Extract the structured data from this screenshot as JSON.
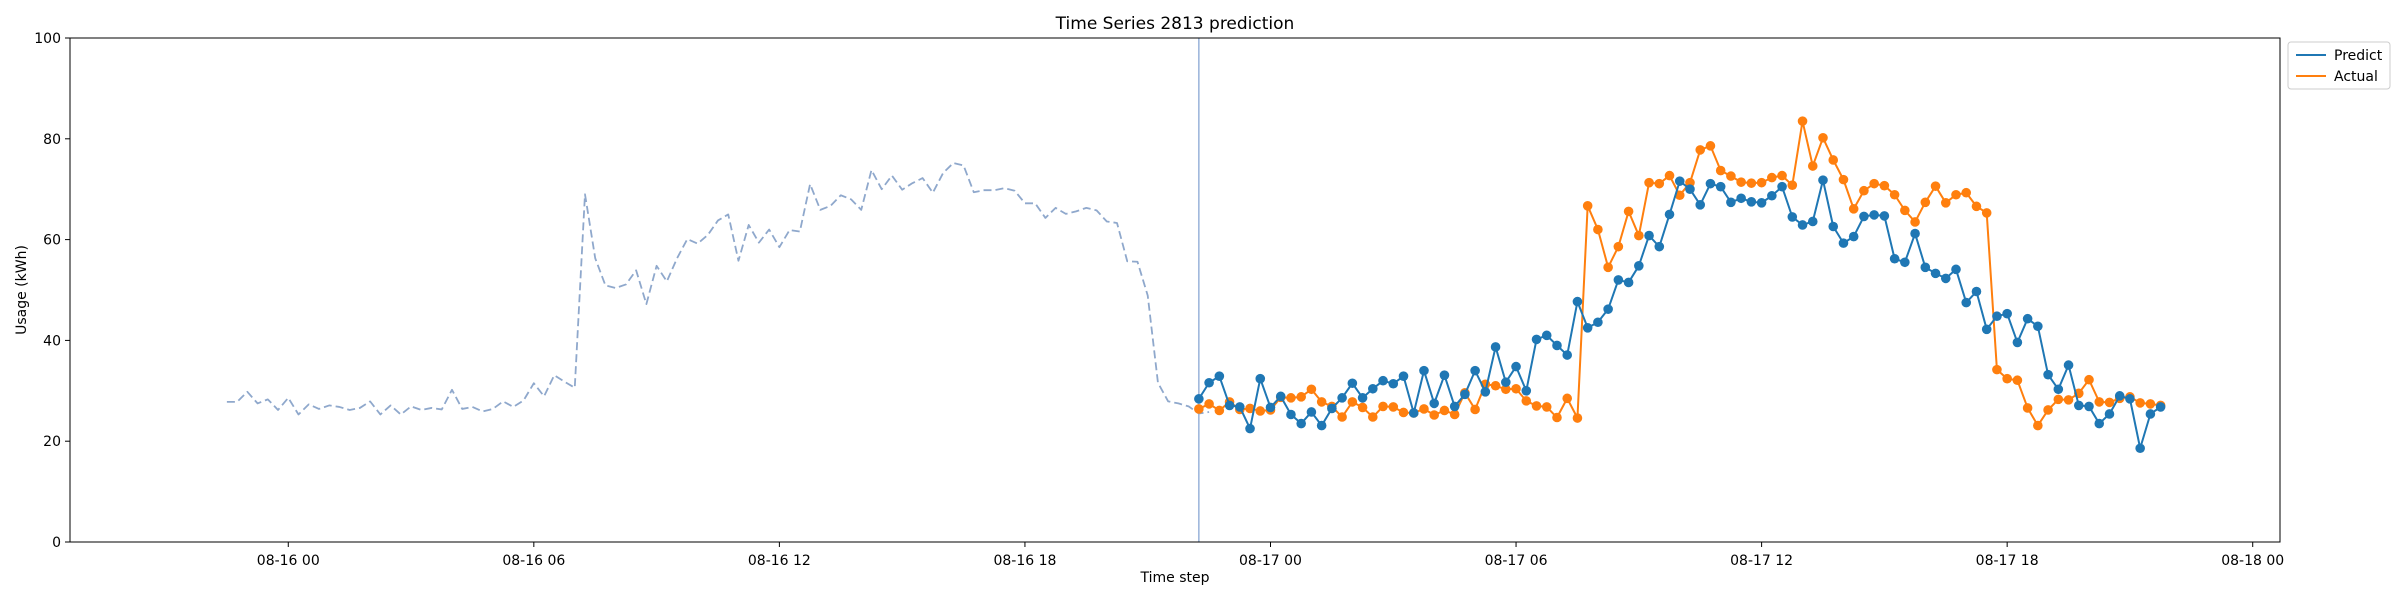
{
  "chart_data": {
    "type": "line",
    "title": "Time Series 2813 prediction",
    "xlabel": "Time step",
    "ylabel": "Usage (kWh)",
    "ylim": [
      0,
      100
    ],
    "yticks": [
      0,
      20,
      40,
      60,
      80,
      100
    ],
    "xlim": [
      "2018-08-15 18:40",
      "2018-08-18 00:40"
    ],
    "xticks": [
      {
        "t": "2018-08-16 00:00",
        "label": "08-16 00"
      },
      {
        "t": "2018-08-16 06:00",
        "label": "08-16 06"
      },
      {
        "t": "2018-08-16 12:00",
        "label": "08-16 12"
      },
      {
        "t": "2018-08-16 18:00",
        "label": "08-16 18"
      },
      {
        "t": "2018-08-17 00:00",
        "label": "08-17 00"
      },
      {
        "t": "2018-08-17 06:00",
        "label": "08-17 06"
      },
      {
        "t": "2018-08-17 12:00",
        "label": "08-17 12"
      },
      {
        "t": "2018-08-17 18:00",
        "label": "08-17 18"
      },
      {
        "t": "2018-08-18 00:00",
        "label": "08-18 00"
      }
    ],
    "grid": false,
    "legend_position": "upper-right-outside",
    "forecast_start": "2018-08-16 22:15",
    "series": [
      {
        "name": "",
        "style": "dashed",
        "color": "#8fa8cc",
        "markers": false,
        "x_start": "2018-08-15 22:30",
        "x_step_minutes": 15,
        "values": [
          27.8,
          27.8,
          29.8,
          27.5,
          28.3,
          26.2,
          28.6,
          25.3,
          27.3,
          26.4,
          27.1,
          26.8,
          26.2,
          26.6,
          27.9,
          25.3,
          27.1,
          25.3,
          26.9,
          26.2,
          26.6,
          26.3,
          30.2,
          26.4,
          26.8,
          25.9,
          26.4,
          27.9,
          26.8,
          28.1,
          31.5,
          28.9,
          33.1,
          31.8,
          30.6,
          69.0,
          56.3,
          50.9,
          50.4,
          51.1,
          53.9,
          47.2,
          54.8,
          51.7,
          56.3,
          60.1,
          59.2,
          60.9,
          63.8,
          65.0,
          55.8,
          62.9,
          59.4,
          62.0,
          58.5,
          61.9,
          61.6,
          71.0,
          65.9,
          66.7,
          68.8,
          68.0,
          65.9,
          73.8,
          70.0,
          72.7,
          69.9,
          71.2,
          72.2,
          69.3,
          73.2,
          75.2,
          74.7,
          69.4,
          69.8,
          69.8,
          70.2,
          69.7,
          67.2,
          67.2,
          64.3,
          66.3,
          65.1,
          65.6,
          66.3,
          65.8,
          63.6,
          63.3,
          55.7,
          55.6,
          48.9,
          31.6,
          27.9,
          27.5,
          26.9,
          25.5,
          25.8
        ]
      },
      {
        "name": "Predict",
        "style": "solid",
        "color": "#1f77b4",
        "markers": true,
        "x_start": "2018-08-16 22:15",
        "x_step_minutes": 15,
        "values": [
          28.4,
          31.6,
          32.9,
          27.1,
          26.8,
          22.5,
          32.4,
          26.7,
          28.9,
          25.3,
          23.5,
          25.8,
          23.1,
          26.5,
          28.6,
          31.5,
          28.6,
          30.4,
          32.0,
          31.4,
          32.9,
          25.6,
          34.0,
          27.5,
          33.1,
          26.9,
          29.3,
          34.0,
          29.8,
          38.7,
          31.7,
          34.8,
          30.0,
          40.2,
          41.0,
          39.0,
          37.1,
          47.7,
          42.5,
          43.6,
          46.2,
          52.0,
          51.5,
          54.8,
          60.8,
          58.6,
          65.0,
          71.6,
          70.0,
          66.9,
          71.1,
          70.5,
          67.4,
          68.2,
          67.5,
          67.3,
          68.7,
          70.5,
          64.5,
          62.9,
          63.6,
          71.8,
          62.6,
          59.3,
          60.6,
          64.6,
          64.9,
          64.7,
          56.2,
          55.5,
          61.2,
          54.5,
          53.3,
          52.3,
          54.1,
          47.5,
          49.7,
          42.2,
          44.8,
          45.3,
          39.6,
          44.3,
          42.8,
          33.2,
          30.3,
          35.1,
          27.1,
          26.9,
          23.5,
          25.4,
          29.0,
          28.4,
          18.6,
          25.4,
          26.8
        ]
      },
      {
        "name": "Actual",
        "style": "solid",
        "color": "#ff7f0e",
        "markers": true,
        "x_start": "2018-08-16 22:15",
        "x_step_minutes": 15,
        "values": [
          26.4,
          27.4,
          26.1,
          27.8,
          26.3,
          26.5,
          26.0,
          26.2,
          28.7,
          28.6,
          28.8,
          30.3,
          27.8,
          26.9,
          24.8,
          27.8,
          26.7,
          24.8,
          26.9,
          26.8,
          25.7,
          25.6,
          26.4,
          25.2,
          26.1,
          25.3,
          29.6,
          26.3,
          31.3,
          31.0,
          30.3,
          30.4,
          28.0,
          27.0,
          26.8,
          24.7,
          28.5,
          24.6,
          66.7,
          62.0,
          54.5,
          58.6,
          65.6,
          60.8,
          71.3,
          71.1,
          72.7,
          68.8,
          71.3,
          77.8,
          78.6,
          73.7,
          72.6,
          71.4,
          71.2,
          71.3,
          72.3,
          72.7,
          70.8,
          83.5,
          74.6,
          80.2,
          75.8,
          71.9,
          66.1,
          69.7,
          71.1,
          70.7,
          68.9,
          65.8,
          63.5,
          67.4,
          70.6,
          67.3,
          68.9,
          69.3,
          66.6,
          65.3,
          34.2,
          32.4,
          32.1,
          26.6,
          23.1,
          26.2,
          28.3,
          28.2,
          29.5,
          32.2,
          27.8,
          27.7,
          28.5,
          28.8,
          27.6,
          27.4,
          27.1
        ]
      }
    ]
  }
}
